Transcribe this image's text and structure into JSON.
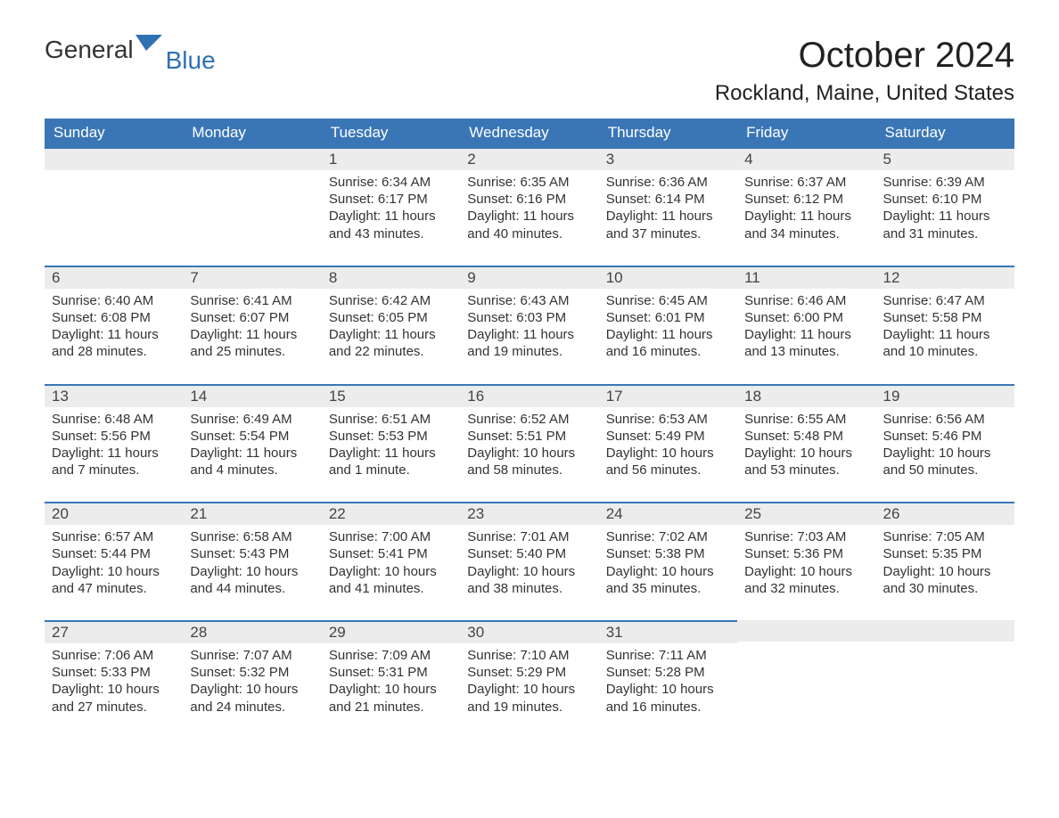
{
  "brand": {
    "part1": "General",
    "part2": "Blue",
    "logo_fill": "#2f71b3"
  },
  "title": "October 2024",
  "subtitle": "Rockland, Maine, United States",
  "colors": {
    "header_bg": "#3a76b6",
    "header_text": "#ffffff",
    "daynum_bg": "#ececec",
    "row_border": "#3a76b6",
    "body_text": "#333333",
    "page_bg": "#ffffff"
  },
  "typography": {
    "title_fontsize": 40,
    "subtitle_fontsize": 24,
    "header_fontsize": 17,
    "daynum_fontsize": 17,
    "body_fontsize": 15
  },
  "day_headers": [
    "Sunday",
    "Monday",
    "Tuesday",
    "Wednesday",
    "Thursday",
    "Friday",
    "Saturday"
  ],
  "weeks": [
    [
      null,
      null,
      {
        "n": "1",
        "sunrise": "6:34 AM",
        "sunset": "6:17 PM",
        "daylight": "11 hours and 43 minutes."
      },
      {
        "n": "2",
        "sunrise": "6:35 AM",
        "sunset": "6:16 PM",
        "daylight": "11 hours and 40 minutes."
      },
      {
        "n": "3",
        "sunrise": "6:36 AM",
        "sunset": "6:14 PM",
        "daylight": "11 hours and 37 minutes."
      },
      {
        "n": "4",
        "sunrise": "6:37 AM",
        "sunset": "6:12 PM",
        "daylight": "11 hours and 34 minutes."
      },
      {
        "n": "5",
        "sunrise": "6:39 AM",
        "sunset": "6:10 PM",
        "daylight": "11 hours and 31 minutes."
      }
    ],
    [
      {
        "n": "6",
        "sunrise": "6:40 AM",
        "sunset": "6:08 PM",
        "daylight": "11 hours and 28 minutes."
      },
      {
        "n": "7",
        "sunrise": "6:41 AM",
        "sunset": "6:07 PM",
        "daylight": "11 hours and 25 minutes."
      },
      {
        "n": "8",
        "sunrise": "6:42 AM",
        "sunset": "6:05 PM",
        "daylight": "11 hours and 22 minutes."
      },
      {
        "n": "9",
        "sunrise": "6:43 AM",
        "sunset": "6:03 PM",
        "daylight": "11 hours and 19 minutes."
      },
      {
        "n": "10",
        "sunrise": "6:45 AM",
        "sunset": "6:01 PM",
        "daylight": "11 hours and 16 minutes."
      },
      {
        "n": "11",
        "sunrise": "6:46 AM",
        "sunset": "6:00 PM",
        "daylight": "11 hours and 13 minutes."
      },
      {
        "n": "12",
        "sunrise": "6:47 AM",
        "sunset": "5:58 PM",
        "daylight": "11 hours and 10 minutes."
      }
    ],
    [
      {
        "n": "13",
        "sunrise": "6:48 AM",
        "sunset": "5:56 PM",
        "daylight": "11 hours and 7 minutes."
      },
      {
        "n": "14",
        "sunrise": "6:49 AM",
        "sunset": "5:54 PM",
        "daylight": "11 hours and 4 minutes."
      },
      {
        "n": "15",
        "sunrise": "6:51 AM",
        "sunset": "5:53 PM",
        "daylight": "11 hours and 1 minute."
      },
      {
        "n": "16",
        "sunrise": "6:52 AM",
        "sunset": "5:51 PM",
        "daylight": "10 hours and 58 minutes."
      },
      {
        "n": "17",
        "sunrise": "6:53 AM",
        "sunset": "5:49 PM",
        "daylight": "10 hours and 56 minutes."
      },
      {
        "n": "18",
        "sunrise": "6:55 AM",
        "sunset": "5:48 PM",
        "daylight": "10 hours and 53 minutes."
      },
      {
        "n": "19",
        "sunrise": "6:56 AM",
        "sunset": "5:46 PM",
        "daylight": "10 hours and 50 minutes."
      }
    ],
    [
      {
        "n": "20",
        "sunrise": "6:57 AM",
        "sunset": "5:44 PM",
        "daylight": "10 hours and 47 minutes."
      },
      {
        "n": "21",
        "sunrise": "6:58 AM",
        "sunset": "5:43 PM",
        "daylight": "10 hours and 44 minutes."
      },
      {
        "n": "22",
        "sunrise": "7:00 AM",
        "sunset": "5:41 PM",
        "daylight": "10 hours and 41 minutes."
      },
      {
        "n": "23",
        "sunrise": "7:01 AM",
        "sunset": "5:40 PM",
        "daylight": "10 hours and 38 minutes."
      },
      {
        "n": "24",
        "sunrise": "7:02 AM",
        "sunset": "5:38 PM",
        "daylight": "10 hours and 35 minutes."
      },
      {
        "n": "25",
        "sunrise": "7:03 AM",
        "sunset": "5:36 PM",
        "daylight": "10 hours and 32 minutes."
      },
      {
        "n": "26",
        "sunrise": "7:05 AM",
        "sunset": "5:35 PM",
        "daylight": "10 hours and 30 minutes."
      }
    ],
    [
      {
        "n": "27",
        "sunrise": "7:06 AM",
        "sunset": "5:33 PM",
        "daylight": "10 hours and 27 minutes."
      },
      {
        "n": "28",
        "sunrise": "7:07 AM",
        "sunset": "5:32 PM",
        "daylight": "10 hours and 24 minutes."
      },
      {
        "n": "29",
        "sunrise": "7:09 AM",
        "sunset": "5:31 PM",
        "daylight": "10 hours and 21 minutes."
      },
      {
        "n": "30",
        "sunrise": "7:10 AM",
        "sunset": "5:29 PM",
        "daylight": "10 hours and 19 minutes."
      },
      {
        "n": "31",
        "sunrise": "7:11 AM",
        "sunset": "5:28 PM",
        "daylight": "10 hours and 16 minutes."
      },
      null,
      null
    ]
  ],
  "labels": {
    "sunrise": "Sunrise:",
    "sunset": "Sunset:",
    "daylight": "Daylight:"
  }
}
